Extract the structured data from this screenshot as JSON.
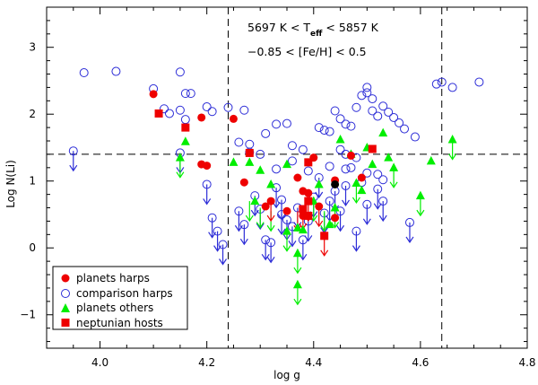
{
  "chart_data": {
    "type": "scatter",
    "xlabel": "log g",
    "ylabel": "Log N(Li)",
    "xlim": [
      3.9,
      4.8
    ],
    "ylim": [
      -1.5,
      3.6
    ],
    "x_ticks": [
      4.0,
      4.2,
      4.4,
      4.6,
      4.8
    ],
    "x_tick_labels": [
      "4.0",
      "4.2",
      "4.4",
      "4.6",
      "4.8"
    ],
    "y_ticks": [
      -1,
      0,
      1,
      2,
      3
    ],
    "y_tick_labels": [
      "−1",
      "0",
      "1",
      "2",
      "3"
    ],
    "annotation": {
      "line1_parts": [
        "5697 K < T",
        "eff",
        " < 5857 K"
      ],
      "line2": "−0.85 < [Fe/H] < 0.5"
    },
    "reference_lines": {
      "horizontal_y": 1.4,
      "vertical_x": [
        4.24,
        4.64
      ]
    },
    "legend_position": "bottom-left",
    "colors": {
      "red": "#ee0000",
      "blue": "#2d2dd7",
      "green": "#00ee00",
      "black": "#000000"
    },
    "series": [
      {
        "name": "planets harps",
        "marker": "filled-circle",
        "color": "#ee0000",
        "points": [
          [
            4.1,
            2.3
          ],
          [
            4.19,
            1.95
          ],
          [
            4.19,
            1.25
          ],
          [
            4.2,
            1.23
          ],
          [
            4.25,
            1.93
          ],
          [
            4.27,
            0.98
          ],
          [
            4.31,
            0.62
          ],
          [
            4.32,
            0.7
          ],
          [
            4.35,
            0.55
          ],
          [
            4.37,
            1.05
          ],
          [
            4.38,
            0.85
          ],
          [
            4.38,
            0.48
          ],
          [
            4.39,
            0.82
          ],
          [
            4.4,
            1.35
          ],
          [
            4.41,
            0.62
          ],
          [
            4.47,
            1.38
          ],
          [
            4.49,
            1.05
          ],
          [
            4.44,
            0.45
          ],
          [
            4.44,
            1.01
          ]
        ],
        "upper_limits": [
          [
            4.32,
            0.7
          ],
          [
            4.37,
            0.55
          ],
          [
            4.41,
            0.62
          ]
        ]
      },
      {
        "name": "comparison harps",
        "marker": "open-circle",
        "color": "#2d2dd7",
        "points": [
          [
            3.97,
            2.62
          ],
          [
            4.03,
            2.64
          ],
          [
            4.1,
            2.38
          ],
          [
            4.13,
            2.01
          ],
          [
            4.12,
            2.08
          ],
          [
            4.15,
            2.63
          ],
          [
            4.16,
            2.31
          ],
          [
            4.17,
            2.31
          ],
          [
            4.15,
            2.06
          ],
          [
            4.16,
            1.92
          ],
          [
            4.2,
            2.11
          ],
          [
            4.21,
            2.04
          ],
          [
            4.24,
            2.1
          ],
          [
            4.27,
            2.06
          ],
          [
            4.26,
            1.58
          ],
          [
            4.28,
            1.55
          ],
          [
            4.28,
            1.43
          ],
          [
            4.3,
            1.4
          ],
          [
            4.31,
            1.71
          ],
          [
            4.33,
            1.85
          ],
          [
            4.35,
            1.86
          ],
          [
            4.36,
            1.53
          ],
          [
            4.38,
            1.47
          ],
          [
            4.41,
            1.8
          ],
          [
            4.42,
            1.76
          ],
          [
            4.43,
            1.74
          ],
          [
            4.44,
            2.05
          ],
          [
            4.45,
            1.93
          ],
          [
            4.46,
            1.85
          ],
          [
            4.47,
            1.82
          ],
          [
            4.48,
            2.1
          ],
          [
            4.49,
            2.28
          ],
          [
            4.5,
            2.32
          ],
          [
            4.5,
            2.4
          ],
          [
            4.51,
            2.23
          ],
          [
            4.51,
            2.05
          ],
          [
            4.52,
            1.97
          ],
          [
            4.53,
            2.12
          ],
          [
            4.54,
            2.03
          ],
          [
            4.55,
            1.95
          ],
          [
            4.56,
            1.87
          ],
          [
            4.57,
            1.78
          ],
          [
            4.59,
            1.66
          ],
          [
            4.45,
            1.47
          ],
          [
            4.46,
            1.4
          ],
          [
            4.48,
            1.35
          ],
          [
            4.47,
            1.2
          ],
          [
            4.5,
            1.12
          ],
          [
            4.52,
            1.1
          ],
          [
            4.49,
            0.98
          ],
          [
            4.53,
            1.02
          ],
          [
            4.46,
            1.18
          ],
          [
            4.43,
            1.22
          ],
          [
            4.39,
            1.15
          ],
          [
            4.36,
            1.3
          ],
          [
            4.33,
            1.18
          ],
          [
            4.63,
            2.45
          ],
          [
            4.66,
            2.4
          ],
          [
            4.71,
            2.48
          ],
          [
            4.64,
            2.48
          ]
        ],
        "upper_limits": [
          [
            3.95,
            1.45
          ],
          [
            4.15,
            1.42
          ],
          [
            4.2,
            0.95
          ],
          [
            4.21,
            0.45
          ],
          [
            4.22,
            0.25
          ],
          [
            4.23,
            0.05
          ],
          [
            4.26,
            0.55
          ],
          [
            4.27,
            0.35
          ],
          [
            4.3,
            0.58
          ],
          [
            4.31,
            0.12
          ],
          [
            4.32,
            0.08
          ],
          [
            4.33,
            0.9
          ],
          [
            4.34,
            0.72
          ],
          [
            4.35,
            0.42
          ],
          [
            4.36,
            0.32
          ],
          [
            4.37,
            0.6
          ],
          [
            4.38,
            0.12
          ],
          [
            4.4,
            0.76
          ],
          [
            4.41,
            1.05
          ],
          [
            4.42,
            0.52
          ],
          [
            4.43,
            0.7
          ],
          [
            4.44,
            0.85
          ],
          [
            4.45,
            0.55
          ],
          [
            4.46,
            0.93
          ],
          [
            4.48,
            0.25
          ],
          [
            4.5,
            0.65
          ],
          [
            4.52,
            0.88
          ],
          [
            4.53,
            0.7
          ],
          [
            4.58,
            0.38
          ],
          [
            4.29,
            0.78
          ],
          [
            4.34,
            0.5
          ],
          [
            4.39,
            0.4
          ]
        ]
      },
      {
        "name": "planets others",
        "marker": "filled-triangle",
        "color": "#00ee00",
        "points": [
          [
            4.15,
            1.35
          ],
          [
            4.16,
            1.59
          ],
          [
            4.25,
            1.28
          ],
          [
            4.28,
            1.28
          ],
          [
            4.3,
            1.16
          ],
          [
            4.32,
            0.95
          ],
          [
            4.35,
            1.25
          ],
          [
            4.37,
            0.3
          ],
          [
            4.38,
            0.27
          ],
          [
            4.4,
            0.7
          ],
          [
            4.41,
            0.95
          ],
          [
            4.43,
            0.35
          ],
          [
            4.45,
            1.62
          ],
          [
            4.47,
            1.4
          ],
          [
            4.48,
            0.97
          ],
          [
            4.49,
            0.86
          ],
          [
            4.51,
            1.25
          ],
          [
            4.54,
            1.35
          ],
          [
            4.55,
            1.2
          ],
          [
            4.62,
            1.3
          ],
          [
            4.66,
            1.62
          ],
          [
            4.37,
            -0.55
          ],
          [
            4.37,
            -0.08
          ],
          [
            4.35,
            0.25
          ],
          [
            4.29,
            0.7
          ],
          [
            4.5,
            1.5
          ],
          [
            4.53,
            1.72
          ],
          [
            4.44,
            0.6
          ],
          [
            4.6,
            0.78
          ]
        ],
        "upper_limits": [
          [
            4.15,
            1.35
          ],
          [
            4.28,
            0.7
          ],
          [
            4.3,
            0.6
          ],
          [
            4.32,
            0.55
          ],
          [
            4.35,
            0.25
          ],
          [
            4.37,
            -0.08
          ],
          [
            4.37,
            -0.55
          ],
          [
            4.4,
            0.7
          ],
          [
            4.42,
            0.55
          ],
          [
            4.48,
            0.97
          ],
          [
            4.55,
            1.2
          ],
          [
            4.6,
            0.78
          ],
          [
            4.66,
            1.62
          ],
          [
            4.44,
            0.6
          ]
        ]
      },
      {
        "name": "neptunian hosts",
        "marker": "filled-square",
        "color": "#ee0000",
        "points": [
          [
            4.11,
            2.01
          ],
          [
            4.16,
            1.8
          ],
          [
            4.28,
            1.42
          ],
          [
            4.39,
            1.28
          ],
          [
            4.39,
            0.48
          ],
          [
            4.39,
            0.7
          ],
          [
            4.42,
            0.18
          ],
          [
            4.51,
            1.48
          ],
          [
            4.38,
            0.58
          ]
        ],
        "upper_limits": [
          [
            4.39,
            0.7
          ],
          [
            4.42,
            0.18
          ],
          [
            4.38,
            0.58
          ]
        ]
      },
      {
        "marker": "filled-circle",
        "color": "#000000",
        "points": [
          [
            4.44,
            0.95
          ]
        ],
        "upper_limits": []
      }
    ]
  }
}
